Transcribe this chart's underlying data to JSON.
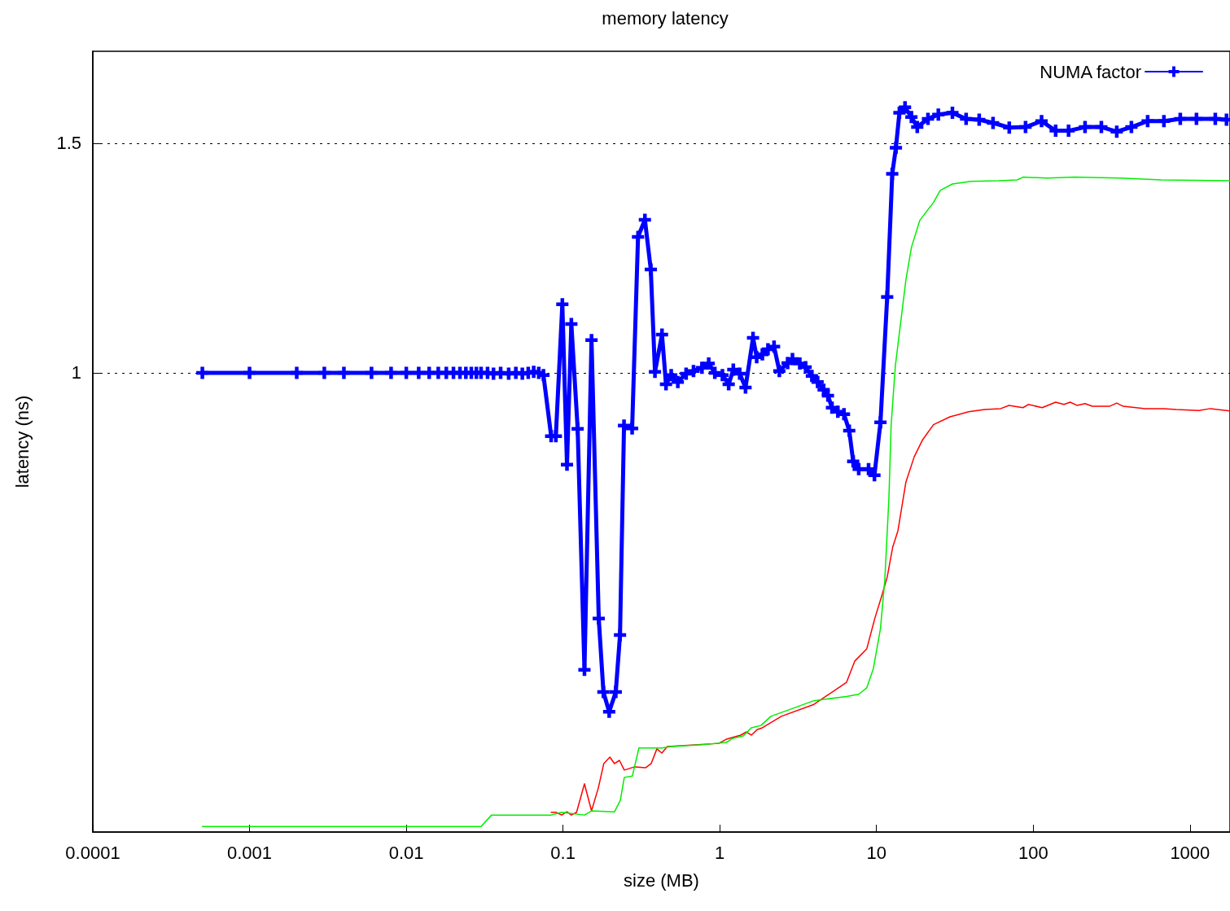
{
  "chart_data": {
    "type": "line",
    "title": "memory latency",
    "xlabel": "size (MB)",
    "ylabel": "latency (ns)",
    "log": "x",
    "grid": "y",
    "legend": "top right",
    "line_style": "solid",
    "xlim": [
      0.0001,
      1800
    ],
    "xticks": [
      0.0001,
      0.001,
      0.01,
      0.1,
      1,
      10,
      100,
      1000
    ],
    "ylim": [
      0,
      1.7
    ],
    "yticks": [
      1,
      1.5
    ],
    "series": [
      {
        "color": "#ff0000",
        "marker": "none",
        "x": [
          0.084,
          0.09,
          0.098,
          0.106,
          0.113,
          0.122,
          0.137,
          0.152,
          0.168,
          0.182,
          0.199,
          0.213,
          0.229,
          0.246,
          0.287,
          0.336,
          0.365,
          0.397,
          0.427,
          0.463,
          0.985,
          1.1,
          1.36,
          1.48,
          1.59,
          1.73,
          1.87,
          2.47,
          3.99,
          6.44,
          7.26,
          8.67,
          9.77,
          10.8,
          11.7,
          12.7,
          13.7,
          15.4,
          17.4,
          19.6,
          23.1,
          29.4,
          38.7,
          49,
          62,
          70,
          86,
          93,
          114,
          139,
          157,
          172,
          190,
          214,
          238,
          306,
          341,
          375,
          518,
          682,
          817,
          1140,
          1350,
          1800
        ],
        "values": [
          0.043,
          0.043,
          0.037,
          0.044,
          0.037,
          0.043,
          0.105,
          0.046,
          0.096,
          0.149,
          0.163,
          0.149,
          0.156,
          0.135,
          0.142,
          0.14,
          0.149,
          0.181,
          0.172,
          0.186,
          0.193,
          0.202,
          0.211,
          0.218,
          0.211,
          0.223,
          0.227,
          0.252,
          0.278,
          0.326,
          0.372,
          0.399,
          0.466,
          0.514,
          0.555,
          0.621,
          0.656,
          0.762,
          0.817,
          0.853,
          0.887,
          0.904,
          0.915,
          0.92,
          0.922,
          0.929,
          0.924,
          0.931,
          0.924,
          0.936,
          0.931,
          0.936,
          0.929,
          0.933,
          0.927,
          0.927,
          0.934,
          0.927,
          0.922,
          0.922,
          0.92,
          0.918,
          0.922,
          0.917
        ]
      },
      {
        "color": "#00ee00",
        "marker": "none",
        "x": [
          0.0005,
          0.03,
          0.035,
          0.084,
          0.098,
          0.137,
          0.152,
          0.213,
          0.232,
          0.246,
          0.277,
          0.305,
          0.427,
          0.492,
          0.774,
          0.95,
          1.1,
          1.21,
          1.41,
          1.59,
          1.83,
          2.12,
          3.99,
          6.44,
          7.7,
          8.67,
          9.55,
          10.6,
          11.3,
          12,
          12.4,
          13.2,
          15.4,
          16.7,
          18.9,
          23.1,
          25.5,
          30.5,
          40,
          60,
          79,
          86,
          123,
          183,
          362,
          658,
          1800
        ],
        "values": [
          0.012,
          0.012,
          0.037,
          0.037,
          0.043,
          0.037,
          0.046,
          0.044,
          0.069,
          0.119,
          0.122,
          0.183,
          0.183,
          0.186,
          0.19,
          0.193,
          0.195,
          0.204,
          0.209,
          0.227,
          0.232,
          0.252,
          0.286,
          0.295,
          0.3,
          0.314,
          0.356,
          0.443,
          0.55,
          0.727,
          0.887,
          1.016,
          1.202,
          1.273,
          1.332,
          1.371,
          1.397,
          1.411,
          1.417,
          1.418,
          1.42,
          1.426,
          1.424,
          1.426,
          1.424,
          1.42,
          1.418
        ]
      },
      {
        "name": "NUMA factor",
        "color": "#0000ff",
        "marker": "cross",
        "x": [
          0.0005,
          0.001,
          0.002,
          0.003,
          0.004,
          0.006,
          0.008,
          0.01,
          0.012,
          0.014,
          0.016,
          0.018,
          0.02,
          0.022,
          0.024,
          0.026,
          0.028,
          0.03,
          0.033,
          0.036,
          0.04,
          0.045,
          0.05,
          0.055,
          0.06,
          0.065,
          0.07,
          0.075,
          0.084,
          0.09,
          0.099,
          0.106,
          0.113,
          0.124,
          0.137,
          0.152,
          0.169,
          0.181,
          0.197,
          0.217,
          0.231,
          0.245,
          0.276,
          0.301,
          0.333,
          0.363,
          0.386,
          0.428,
          0.454,
          0.49,
          0.54,
          0.61,
          0.68,
          0.77,
          0.85,
          0.93,
          1.04,
          1.14,
          1.22,
          1.34,
          1.46,
          1.63,
          1.72,
          1.87,
          2.03,
          2.22,
          2.4,
          2.71,
          2.91,
          3.24,
          3.53,
          3.87,
          4.21,
          4.6,
          4.9,
          5.2,
          5.67,
          6.2,
          6.7,
          7.1,
          7.7,
          8.9,
          9.7,
          10.6,
          11.7,
          12.6,
          13.3,
          14,
          15.2,
          16.7,
          18.2,
          21.3,
          24.8,
          30.5,
          37.3,
          45.2,
          55.4,
          70.3,
          89.3,
          113,
          139,
          168,
          214,
          272,
          341,
          423,
          537,
          682,
          867,
          1100,
          1450,
          1710
        ],
        "values": [
          1,
          1,
          1,
          1,
          1,
          1,
          1,
          1,
          1,
          1,
          1,
          1,
          1,
          1,
          1,
          1,
          1,
          1,
          1,
          0.998,
          1,
          0.998,
          1,
          0.998,
          1,
          1.002,
          1,
          0.995,
          0.862,
          0.862,
          1.149,
          0.8,
          1.106,
          0.878,
          0.353,
          1.071,
          0.465,
          0.305,
          0.262,
          0.305,
          0.429,
          0.885,
          0.879,
          1.296,
          1.333,
          1.225,
          1.002,
          1.083,
          0.975,
          0.995,
          0.98,
          0.998,
          1.004,
          1.011,
          1.02,
          1,
          0.995,
          0.975,
          1.007,
          0.998,
          0.968,
          1.076,
          1.034,
          1.04,
          1.051,
          1.057,
          1.004,
          1.021,
          1.03,
          1.02,
          1.012,
          0.993,
          0.98,
          0.963,
          0.95,
          0.924,
          0.915,
          0.91,
          0.874,
          0.807,
          0.79,
          0.79,
          0.777,
          0.892,
          1.165,
          1.433,
          1.49,
          1.566,
          1.578,
          1.557,
          1.535,
          1.553,
          1.562,
          1.566,
          1.553,
          1.551,
          1.544,
          1.534,
          1.535,
          1.548,
          1.527,
          1.527,
          1.535,
          1.535,
          1.525,
          1.535,
          1.548,
          1.548,
          1.553,
          1.553,
          1.553,
          1.551
        ]
      }
    ]
  }
}
